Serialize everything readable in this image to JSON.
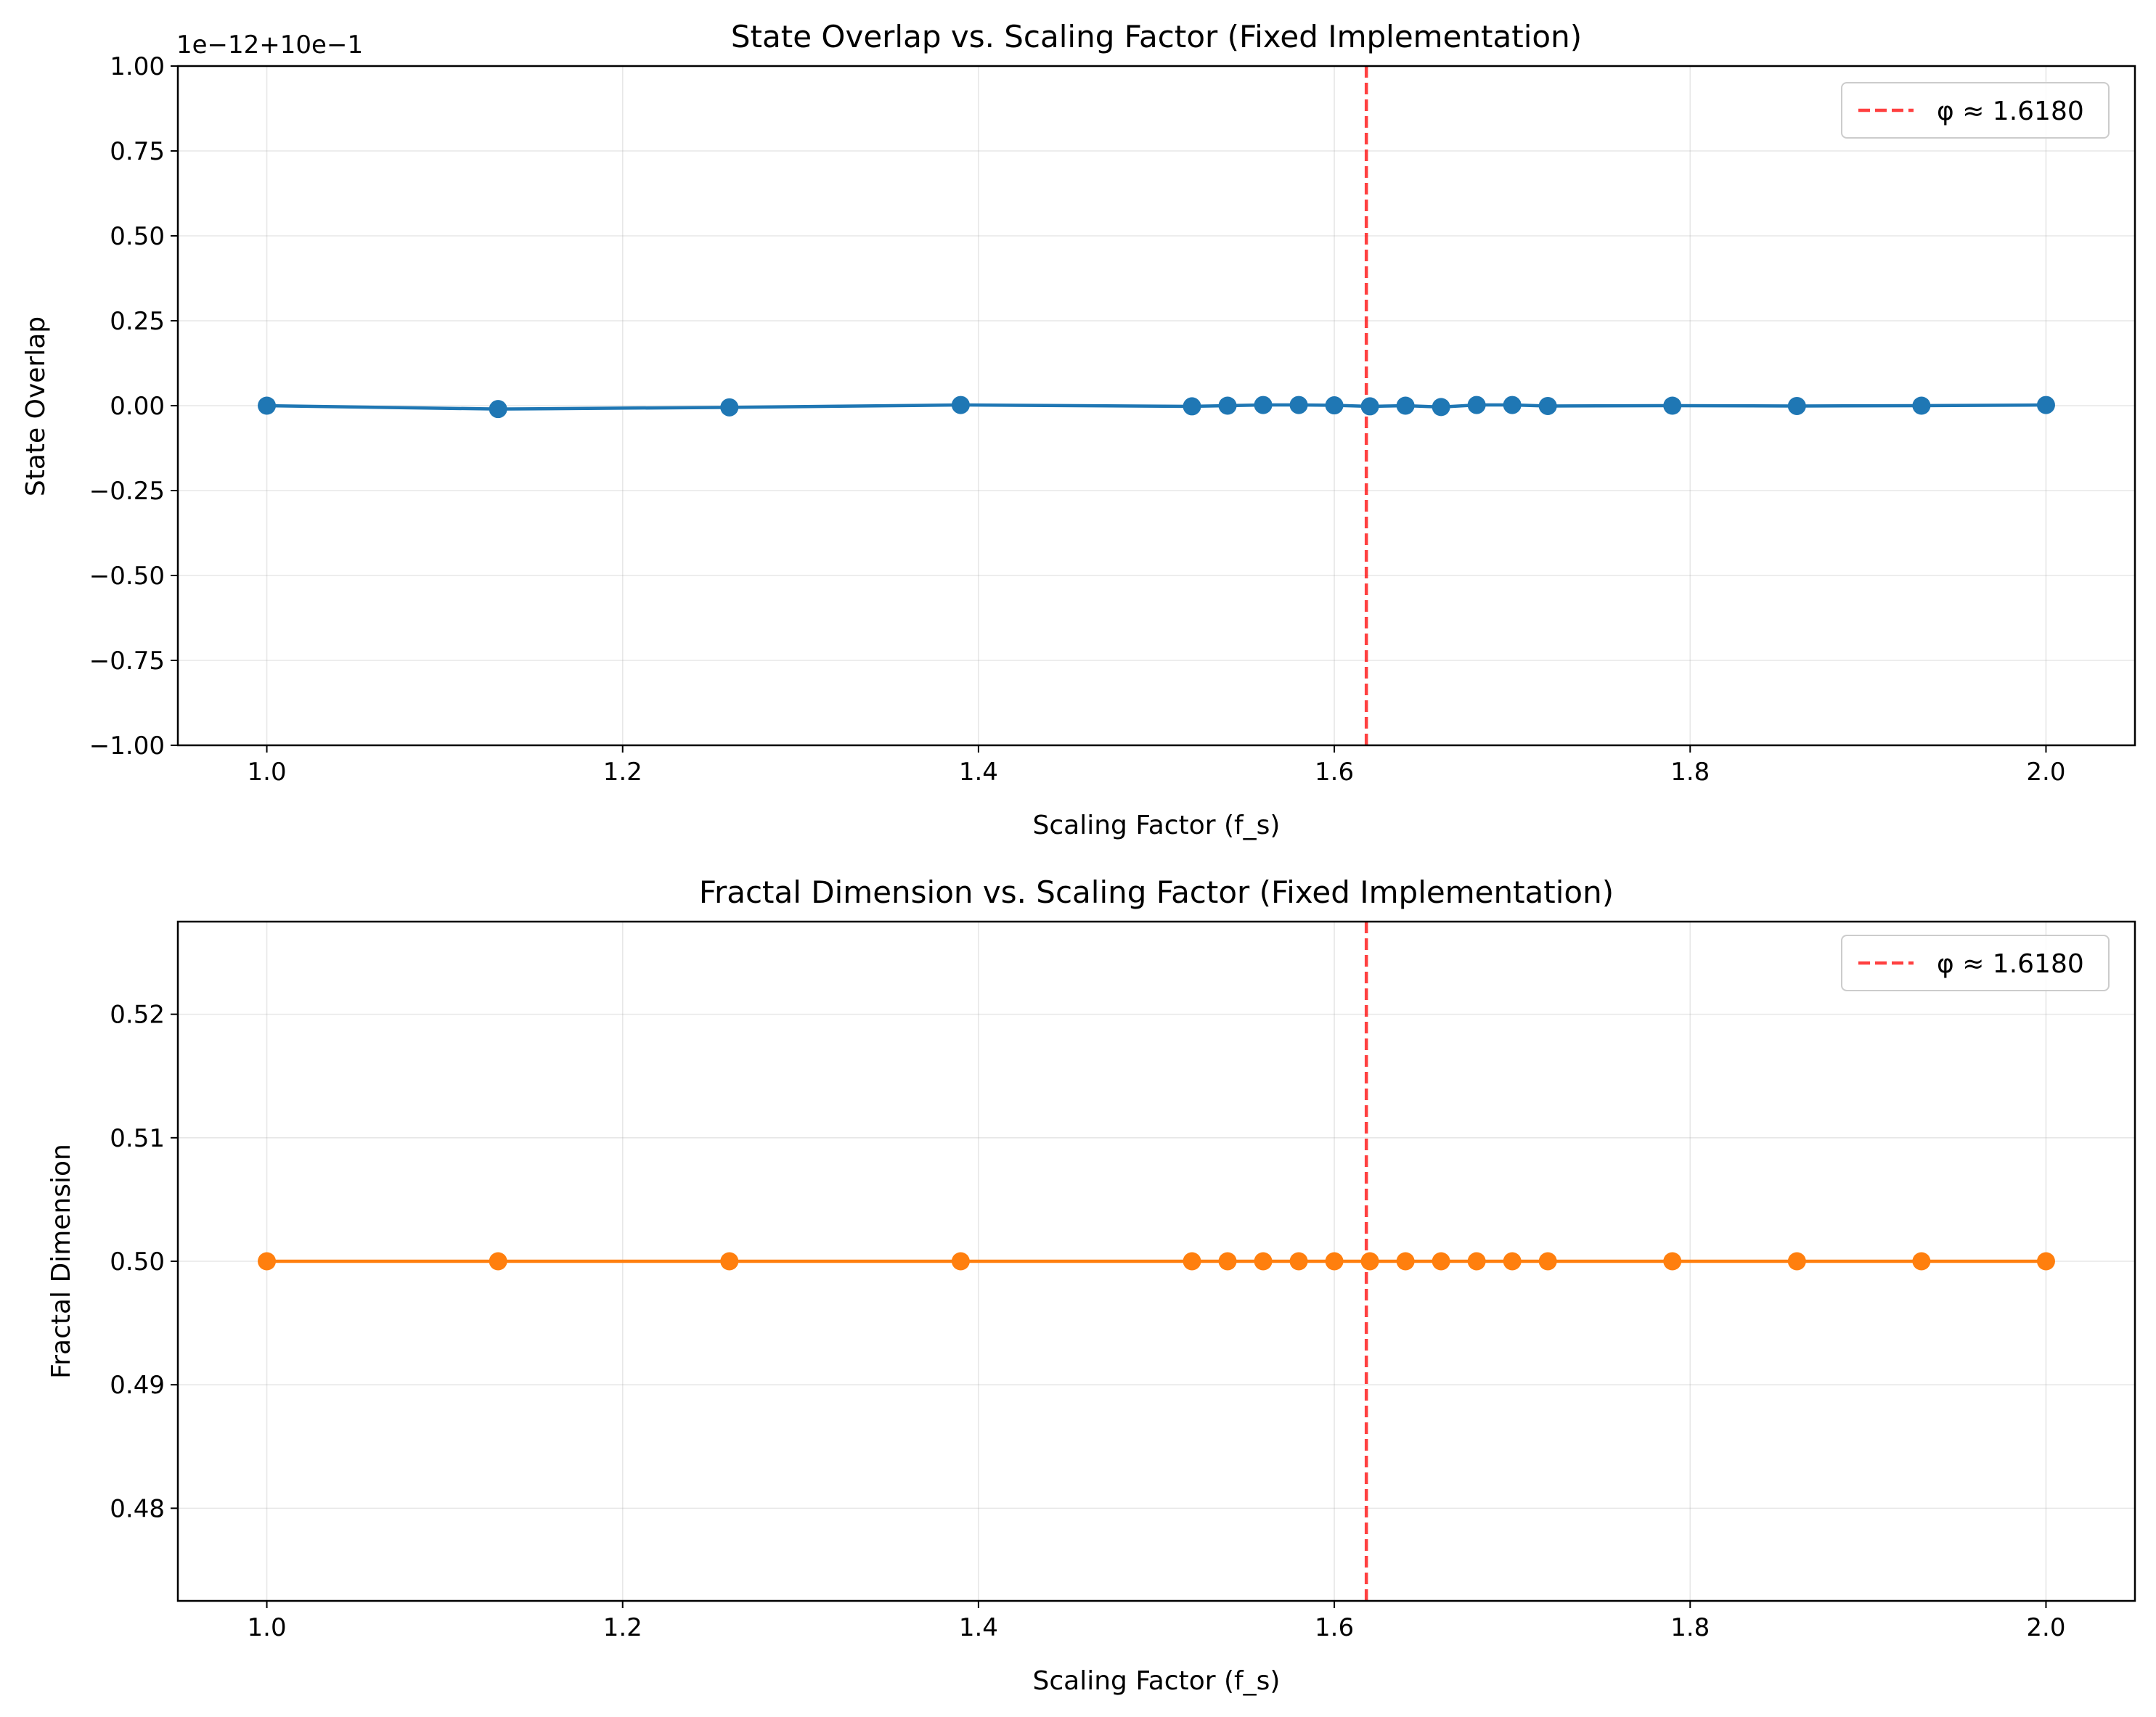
{
  "chart_data": [
    {
      "type": "line",
      "title": "State Overlap vs. Scaling Factor (Fixed Implementation)",
      "xlabel": "Scaling Factor (f_s)",
      "ylabel": "State Overlap",
      "axis_offset_text": "1e−12+10e−1",
      "xlim": [
        0.95,
        2.05
      ],
      "ylim": [
        -1.0,
        1.0
      ],
      "x_ticks": [
        1.0,
        1.2,
        1.4,
        1.6,
        1.8,
        2.0
      ],
      "x_tick_labels": [
        "1.0",
        "1.2",
        "1.4",
        "1.6",
        "1.8",
        "2.0"
      ],
      "y_ticks": [
        1.0,
        0.75,
        0.5,
        0.25,
        0.0,
        -0.25,
        -0.5,
        -0.75,
        -1.0
      ],
      "y_tick_labels": [
        "1.00",
        "0.75",
        "0.50",
        "0.25",
        "0.00",
        "−0.25",
        "−0.50",
        "−0.75",
        "−1.00"
      ],
      "grid": true,
      "legend_position": "top-right",
      "series": [
        {
          "color": "#1f77b4",
          "x": [
            1.0,
            1.13,
            1.26,
            1.39,
            1.52,
            1.54,
            1.56,
            1.58,
            1.6,
            1.62,
            1.64,
            1.66,
            1.68,
            1.7,
            1.72,
            1.79,
            1.86,
            1.93,
            2.0
          ],
          "y": [
            0.0,
            -0.01,
            -0.005,
            0.002,
            -0.002,
            0.0,
            0.002,
            0.002,
            0.001,
            -0.002,
            0.0,
            -0.004,
            0.002,
            0.002,
            -0.001,
            0.0,
            -0.001,
            0.0,
            0.002
          ]
        }
      ],
      "reference_lines": [
        {
          "x": 1.618,
          "label": "φ ≈ 1.6180",
          "color": "#ff0000",
          "style": "dashed"
        }
      ]
    },
    {
      "type": "line",
      "title": "Fractal Dimension vs. Scaling Factor (Fixed Implementation)",
      "xlabel": "Scaling Factor (f_s)",
      "ylabel": "Fractal Dimension",
      "xlim": [
        0.95,
        2.05
      ],
      "ylim": [
        0.4725,
        0.5275
      ],
      "x_ticks": [
        1.0,
        1.2,
        1.4,
        1.6,
        1.8,
        2.0
      ],
      "x_tick_labels": [
        "1.0",
        "1.2",
        "1.4",
        "1.6",
        "1.8",
        "2.0"
      ],
      "y_ticks": [
        0.52,
        0.51,
        0.5,
        0.49,
        0.48
      ],
      "y_tick_labels": [
        "0.52",
        "0.51",
        "0.50",
        "0.49",
        "0.48"
      ],
      "grid": true,
      "legend_position": "top-right",
      "series": [
        {
          "color": "#ff7f0e",
          "x": [
            1.0,
            1.13,
            1.26,
            1.39,
            1.52,
            1.54,
            1.56,
            1.58,
            1.6,
            1.62,
            1.64,
            1.66,
            1.68,
            1.7,
            1.72,
            1.79,
            1.86,
            1.93,
            2.0
          ],
          "y": [
            0.5,
            0.5,
            0.5,
            0.5,
            0.5,
            0.5,
            0.5,
            0.5,
            0.5,
            0.5,
            0.5,
            0.5,
            0.5,
            0.5,
            0.5,
            0.5,
            0.5,
            0.5,
            0.5
          ]
        }
      ],
      "reference_lines": [
        {
          "x": 1.618,
          "label": "φ ≈ 1.6180",
          "color": "#ff0000",
          "style": "dashed"
        }
      ]
    }
  ]
}
